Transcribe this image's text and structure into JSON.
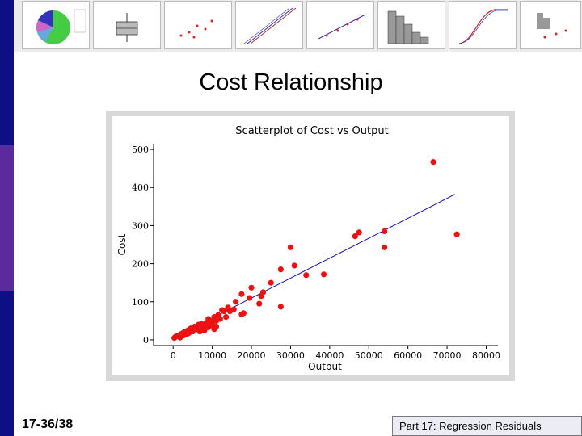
{
  "slide": {
    "title": "Cost Relationship",
    "number": "17-36/38",
    "footer": "Part 17: Regression Residuals"
  },
  "colors": {
    "frame": "#d8d8d8",
    "points": "#ee1111",
    "fit_line": "#1111aa",
    "side_bar_dark": "#0e0e85",
    "side_bar_mid": "#5a2b9d"
  },
  "chart_data": {
    "type": "scatter",
    "title": "Scatterplot of Cost vs Output",
    "xlabel": "Output",
    "ylabel": "Cost",
    "xlim": [
      -5000,
      83000
    ],
    "ylim": [
      -15,
      515
    ],
    "xticks": [
      0,
      10000,
      20000,
      30000,
      40000,
      50000,
      60000,
      70000,
      80000
    ],
    "yticks": [
      0,
      100,
      200,
      300,
      400,
      500
    ],
    "grid": false,
    "fit_line": {
      "x": [
        0,
        72000
      ],
      "y": [
        5,
        382
      ]
    },
    "points": [
      {
        "x": 66500,
        "y": 467
      },
      {
        "x": 72500,
        "y": 277
      },
      {
        "x": 54000,
        "y": 285
      },
      {
        "x": 54000,
        "y": 243
      },
      {
        "x": 47500,
        "y": 282
      },
      {
        "x": 46500,
        "y": 272
      },
      {
        "x": 30000,
        "y": 243
      },
      {
        "x": 31000,
        "y": 195
      },
      {
        "x": 34000,
        "y": 170
      },
      {
        "x": 38500,
        "y": 172
      },
      {
        "x": 27500,
        "y": 185
      },
      {
        "x": 25000,
        "y": 150
      },
      {
        "x": 23000,
        "y": 125
      },
      {
        "x": 22500,
        "y": 115
      },
      {
        "x": 20000,
        "y": 137
      },
      {
        "x": 19500,
        "y": 110
      },
      {
        "x": 17500,
        "y": 120
      },
      {
        "x": 16000,
        "y": 100
      },
      {
        "x": 14000,
        "y": 85
      },
      {
        "x": 13000,
        "y": 75
      },
      {
        "x": 15500,
        "y": 80
      },
      {
        "x": 17500,
        "y": 67
      },
      {
        "x": 22000,
        "y": 95
      },
      {
        "x": 27500,
        "y": 87
      },
      {
        "x": 18000,
        "y": 70
      },
      {
        "x": 11500,
        "y": 65
      },
      {
        "x": 12500,
        "y": 78
      },
      {
        "x": 10500,
        "y": 60
      },
      {
        "x": 9500,
        "y": 50
      },
      {
        "x": 10000,
        "y": 42
      },
      {
        "x": 8500,
        "y": 45
      },
      {
        "x": 7500,
        "y": 38
      },
      {
        "x": 6500,
        "y": 40
      },
      {
        "x": 9000,
        "y": 33
      },
      {
        "x": 10500,
        "y": 28
      },
      {
        "x": 5500,
        "y": 35
      },
      {
        "x": 4500,
        "y": 30
      },
      {
        "x": 3800,
        "y": 25
      },
      {
        "x": 3000,
        "y": 22
      },
      {
        "x": 2500,
        "y": 18
      },
      {
        "x": 2000,
        "y": 15
      },
      {
        "x": 1500,
        "y": 12
      },
      {
        "x": 1000,
        "y": 10
      },
      {
        "x": 600,
        "y": 8
      },
      {
        "x": 300,
        "y": 5
      },
      {
        "x": 5000,
        "y": 22
      },
      {
        "x": 6000,
        "y": 28
      },
      {
        "x": 7000,
        "y": 30
      },
      {
        "x": 8000,
        "y": 35
      },
      {
        "x": 4000,
        "y": 18
      },
      {
        "x": 3500,
        "y": 15
      },
      {
        "x": 2800,
        "y": 12
      },
      {
        "x": 12000,
        "y": 55
      },
      {
        "x": 11000,
        "y": 50
      },
      {
        "x": 13500,
        "y": 60
      },
      {
        "x": 8000,
        "y": 25
      },
      {
        "x": 9500,
        "y": 38
      },
      {
        "x": 6800,
        "y": 22
      },
      {
        "x": 1800,
        "y": 6
      },
      {
        "x": 5200,
        "y": 27
      },
      {
        "x": 14500,
        "y": 75
      },
      {
        "x": 7200,
        "y": 42
      },
      {
        "x": 4200,
        "y": 20
      },
      {
        "x": 2200,
        "y": 10
      },
      {
        "x": 9000,
        "y": 55
      },
      {
        "x": 11000,
        "y": 35
      }
    ]
  }
}
